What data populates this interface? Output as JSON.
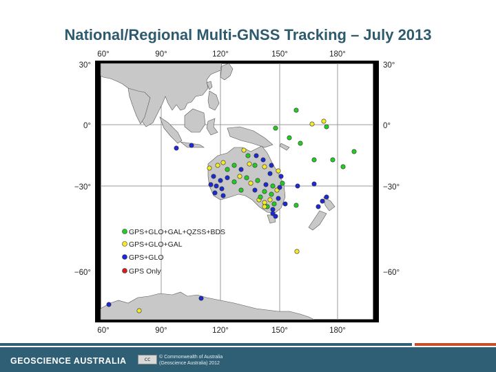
{
  "title": "National/Regional Multi-GNSS Tracking – July 2013",
  "map": {
    "lon_labels": [
      "60°",
      "90°",
      "120°",
      "150°",
      "180°"
    ],
    "lat_labels_left": [
      "30°",
      "0°",
      "−30°",
      "−60°"
    ],
    "lat_labels_right": [
      "30°",
      "0°",
      "−30°",
      "−60°"
    ],
    "legend": [
      {
        "label": "GPS+GLO+GAL+QZSS+BDS",
        "color": "#22cc22"
      },
      {
        "label": "GPS+GLO+GAL",
        "color": "#f2ea2a"
      },
      {
        "label": "GPS+GLO",
        "color": "#1a2ad4"
      },
      {
        "label": "GPS Only",
        "color": "#cc2222"
      }
    ],
    "colors": {
      "land": "#c8c8c8",
      "sea": "#ffffff",
      "grid": "#999999",
      "frame": "#000000"
    }
  },
  "footer": {
    "brand": "GEOSCIENCE AUSTRALIA",
    "license_badge": "cc",
    "copyright_line1": "© Commonwealth of Australia",
    "copyright_line2": "(Geoscience Australia) 2012"
  }
}
